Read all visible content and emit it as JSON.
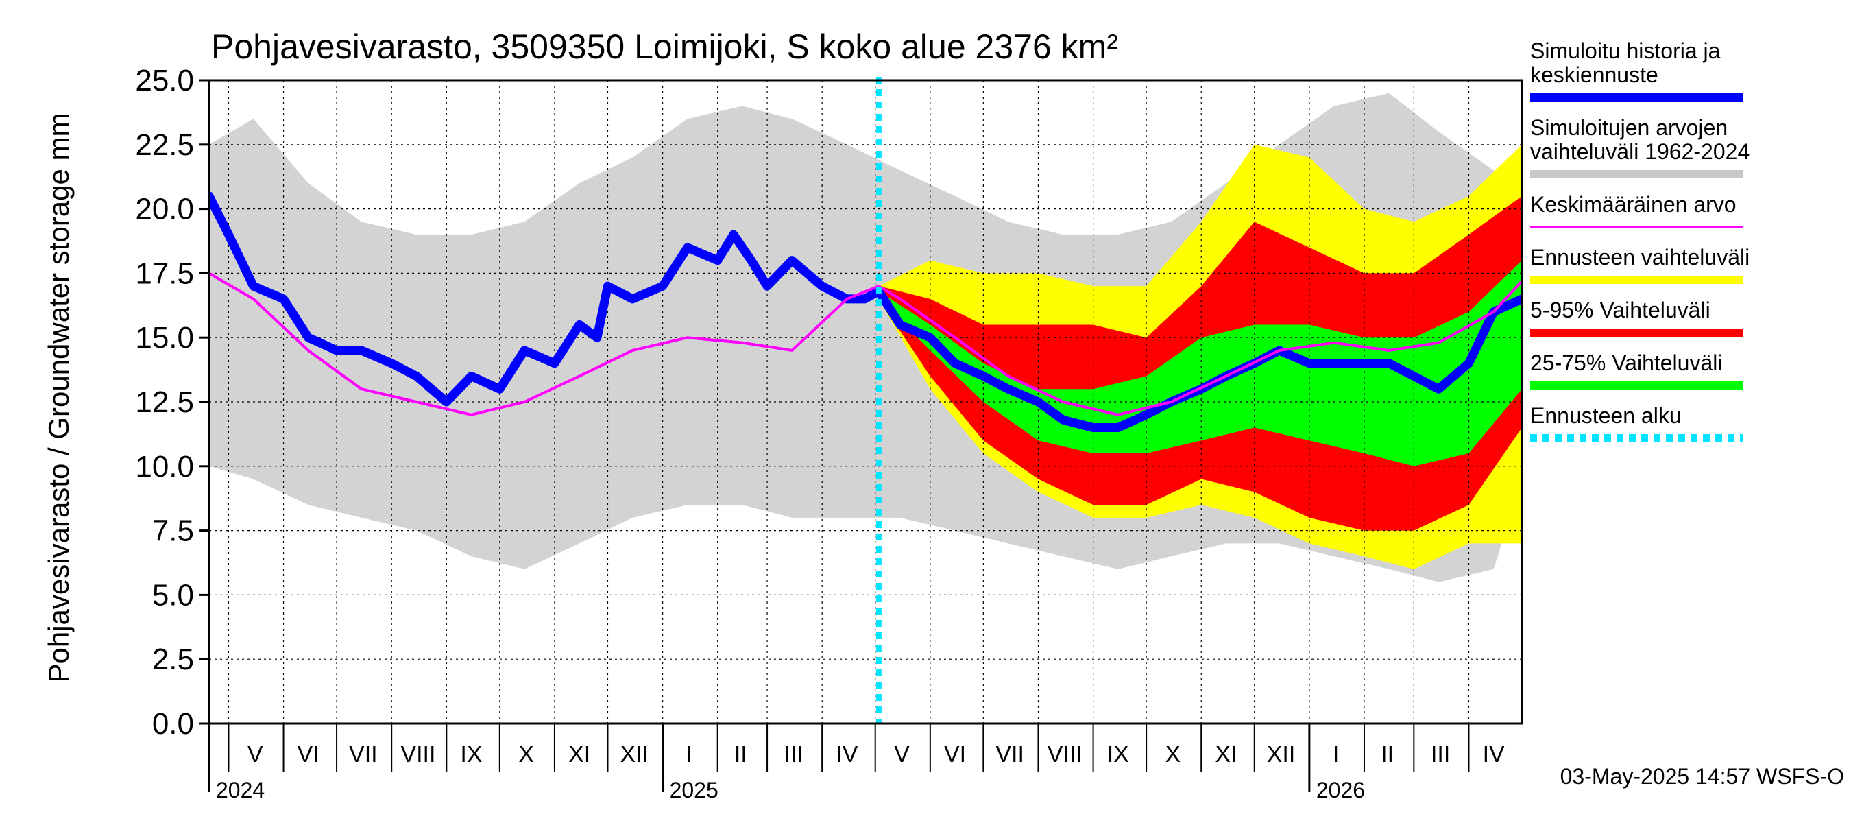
{
  "chart_data": {
    "type": "area",
    "title": "Pohjavesivarasto, 3509350 Loimijoki, S koko alue 2376 km²",
    "ylabel": "Pohjavesivarasto / Groundwater storage   mm",
    "ylim": [
      0,
      25
    ],
    "y_ticks": [
      "0.0",
      "2.5",
      "5.0",
      "7.5",
      "10.0",
      "12.5",
      "15.0",
      "17.5",
      "20.0",
      "22.5",
      "25.0"
    ],
    "x_range": [
      "2024-04-20",
      "2026-05-01"
    ],
    "forecast_start": "2025-05-03",
    "month_labels": [
      {
        "label": "V",
        "date": "2024-05-16"
      },
      {
        "label": "VI",
        "date": "2024-06-15"
      },
      {
        "label": "VII",
        "date": "2024-07-16"
      },
      {
        "label": "VIII",
        "date": "2024-08-16"
      },
      {
        "label": "IX",
        "date": "2024-09-15"
      },
      {
        "label": "X",
        "date": "2024-10-16"
      },
      {
        "label": "XI",
        "date": "2024-11-15"
      },
      {
        "label": "XII",
        "date": "2024-12-16"
      },
      {
        "label": "I",
        "date": "2025-01-16"
      },
      {
        "label": "II",
        "date": "2025-02-14"
      },
      {
        "label": "III",
        "date": "2025-03-16"
      },
      {
        "label": "IV",
        "date": "2025-04-15"
      },
      {
        "label": "V",
        "date": "2025-05-16"
      },
      {
        "label": "VI",
        "date": "2025-06-15"
      },
      {
        "label": "VII",
        "date": "2025-07-16"
      },
      {
        "label": "VIII",
        "date": "2025-08-16"
      },
      {
        "label": "IX",
        "date": "2025-09-15"
      },
      {
        "label": "X",
        "date": "2025-10-16"
      },
      {
        "label": "XI",
        "date": "2025-11-15"
      },
      {
        "label": "XII",
        "date": "2025-12-16"
      },
      {
        "label": "I",
        "date": "2026-01-16"
      },
      {
        "label": "II",
        "date": "2026-02-14"
      },
      {
        "label": "III",
        "date": "2026-03-16"
      },
      {
        "label": "IV",
        "date": "2026-04-15"
      }
    ],
    "year_labels": [
      {
        "label": "2024",
        "date": "2024-04-20"
      },
      {
        "label": "2025",
        "date": "2025-01-01"
      },
      {
        "label": "2026",
        "date": "2026-01-01"
      }
    ],
    "legend": [
      {
        "label": "Simuloitu historia ja keskiennuste",
        "color": "#0000ff",
        "style": "thick"
      },
      {
        "label": "Simuloitujen arvojen vaihteluväli 1962-2024",
        "color": "#c8c8c8",
        "style": "thick"
      },
      {
        "label": "Keskimääräinen arvo",
        "color": "#ff00ff",
        "style": "thin"
      },
      {
        "label": "Ennusteen vaihteluväli",
        "color": "#ffff00",
        "style": "thick"
      },
      {
        "label": "5-95% Vaihteluväli",
        "color": "#ff0000",
        "style": "thick"
      },
      {
        "label": "25-75% Vaihteluväli",
        "color": "#00ff00",
        "style": "thick"
      },
      {
        "label": "Ennusteen alku",
        "color": "#00e5ff",
        "style": "dotted"
      }
    ],
    "legend_position": "right",
    "grid": true,
    "series": [
      {
        "name": "Simuloitujen arvojen vaihteluväli 1962-2024",
        "kind": "band",
        "color": "#d3d3d3",
        "x": [
          "2024-04-20",
          "2024-05-15",
          "2024-06-15",
          "2024-07-15",
          "2024-08-15",
          "2024-09-15",
          "2024-10-15",
          "2024-11-15",
          "2024-12-15",
          "2025-01-15",
          "2025-02-15",
          "2025-03-15",
          "2025-04-15",
          "2025-05-15",
          "2025-06-15",
          "2025-07-15",
          "2025-08-15",
          "2025-09-15",
          "2025-10-15",
          "2025-11-15",
          "2025-12-15",
          "2026-01-15",
          "2026-02-15",
          "2026-03-15",
          "2026-04-15",
          "2026-05-01"
        ],
        "upper": [
          22.5,
          23.5,
          21.0,
          19.5,
          19.0,
          19.0,
          19.5,
          21.0,
          22.0,
          23.5,
          24.0,
          23.5,
          22.5,
          21.5,
          20.5,
          19.5,
          19.0,
          19.0,
          19.5,
          21.0,
          22.5,
          24.0,
          24.5,
          23.0,
          21.5,
          21.0
        ],
        "lower": [
          10.0,
          9.5,
          8.5,
          8.0,
          7.5,
          6.5,
          6.0,
          7.0,
          8.0,
          8.5,
          8.5,
          8.0,
          8.0,
          8.0,
          7.5,
          7.0,
          6.5,
          6.0,
          6.5,
          7.0,
          7.0,
          6.5,
          6.0,
          5.5,
          6.0,
          9.5
        ]
      },
      {
        "name": "Ennusteen vaihteluväli",
        "kind": "band",
        "color": "#ffff00",
        "x": [
          "2025-05-03",
          "2025-06-01",
          "2025-07-01",
          "2025-08-01",
          "2025-09-01",
          "2025-10-01",
          "2025-11-01",
          "2025-12-01",
          "2026-01-01",
          "2026-02-01",
          "2026-03-01",
          "2026-04-01",
          "2026-05-01"
        ],
        "upper": [
          17.0,
          18.0,
          17.5,
          17.5,
          17.0,
          17.0,
          19.5,
          22.5,
          22.0,
          20.0,
          19.5,
          20.5,
          22.5
        ],
        "lower": [
          16.5,
          13.0,
          10.5,
          9.0,
          8.0,
          8.0,
          8.5,
          8.0,
          7.0,
          6.5,
          6.0,
          7.0,
          7.0
        ]
      },
      {
        "name": "5-95% Vaihteluväli",
        "kind": "band",
        "color": "#ff0000",
        "x": [
          "2025-05-03",
          "2025-06-01",
          "2025-07-01",
          "2025-08-01",
          "2025-09-01",
          "2025-10-01",
          "2025-11-01",
          "2025-12-01",
          "2026-01-01",
          "2026-02-01",
          "2026-03-01",
          "2026-04-01",
          "2026-05-01"
        ],
        "upper": [
          17.0,
          16.5,
          15.5,
          15.5,
          15.5,
          15.0,
          17.0,
          19.5,
          18.5,
          17.5,
          17.5,
          19.0,
          20.5
        ],
        "lower": [
          16.5,
          13.5,
          11.0,
          9.5,
          8.5,
          8.5,
          9.5,
          9.0,
          8.0,
          7.5,
          7.5,
          8.5,
          11.5
        ]
      },
      {
        "name": "25-75% Vaihteluväli",
        "kind": "band",
        "color": "#00ff00",
        "x": [
          "2025-05-03",
          "2025-06-01",
          "2025-07-01",
          "2025-08-01",
          "2025-09-01",
          "2025-10-01",
          "2025-11-01",
          "2025-12-01",
          "2026-01-01",
          "2026-02-01",
          "2026-03-01",
          "2026-04-01",
          "2026-05-01"
        ],
        "upper": [
          16.8,
          15.5,
          14.0,
          13.0,
          13.0,
          13.5,
          15.0,
          15.5,
          15.5,
          15.0,
          15.0,
          16.0,
          18.0
        ],
        "lower": [
          16.5,
          14.5,
          12.5,
          11.0,
          10.5,
          10.5,
          11.0,
          11.5,
          11.0,
          10.5,
          10.0,
          10.5,
          13.0
        ]
      },
      {
        "name": "Simuloitu historia ja keskiennuste",
        "kind": "line",
        "color": "#0000ff",
        "x": [
          "2024-04-20",
          "2024-05-01",
          "2024-05-15",
          "2024-06-01",
          "2024-06-15",
          "2024-07-01",
          "2024-07-15",
          "2024-08-01",
          "2024-08-15",
          "2024-09-01",
          "2024-09-15",
          "2024-10-01",
          "2024-10-15",
          "2024-11-01",
          "2024-11-15",
          "2024-11-25",
          "2024-12-01",
          "2024-12-15",
          "2025-01-01",
          "2025-01-15",
          "2025-02-01",
          "2025-02-10",
          "2025-02-20",
          "2025-03-01",
          "2025-03-15",
          "2025-04-01",
          "2025-04-15",
          "2025-04-25",
          "2025-05-03",
          "2025-05-15",
          "2025-06-01",
          "2025-06-15",
          "2025-07-01",
          "2025-07-15",
          "2025-08-01",
          "2025-08-15",
          "2025-09-01",
          "2025-09-15",
          "2025-10-01",
          "2025-10-15",
          "2025-11-01",
          "2025-11-15",
          "2025-12-01",
          "2025-12-15",
          "2026-01-01",
          "2026-01-15",
          "2026-02-01",
          "2026-02-15",
          "2026-03-01",
          "2026-03-15",
          "2026-04-01",
          "2026-04-15",
          "2026-05-01"
        ],
        "y": [
          20.5,
          19.0,
          17.0,
          16.5,
          15.0,
          14.5,
          14.5,
          14.0,
          13.5,
          12.5,
          13.5,
          13.0,
          14.5,
          14.0,
          15.5,
          15.0,
          17.0,
          16.5,
          17.0,
          18.5,
          18.0,
          19.0,
          18.0,
          17.0,
          18.0,
          17.0,
          16.5,
          16.5,
          16.8,
          15.5,
          15.0,
          14.0,
          13.5,
          13.0,
          12.5,
          11.8,
          11.5,
          11.5,
          12.0,
          12.5,
          13.0,
          13.5,
          14.0,
          14.5,
          14.0,
          14.0,
          14.0,
          14.0,
          13.5,
          13.0,
          14.0,
          16.0,
          16.5
        ]
      },
      {
        "name": "Keskimääräinen arvo",
        "kind": "line",
        "color": "#ff00ff",
        "x": [
          "2024-04-20",
          "2024-05-15",
          "2024-06-15",
          "2024-07-15",
          "2024-08-15",
          "2024-09-15",
          "2024-10-15",
          "2024-11-15",
          "2024-12-15",
          "2025-01-15",
          "2025-02-15",
          "2025-03-15",
          "2025-04-15",
          "2025-05-03",
          "2025-05-15",
          "2025-06-15",
          "2025-07-15",
          "2025-08-15",
          "2025-09-15",
          "2025-10-15",
          "2025-11-15",
          "2025-12-15",
          "2026-01-15",
          "2026-02-15",
          "2026-03-15",
          "2026-04-15",
          "2026-05-01"
        ],
        "y": [
          17.5,
          16.5,
          14.5,
          13.0,
          12.5,
          12.0,
          12.5,
          13.5,
          14.5,
          15.0,
          14.8,
          14.5,
          16.5,
          17.0,
          16.5,
          15.0,
          13.5,
          12.5,
          12.0,
          12.5,
          13.5,
          14.5,
          14.8,
          14.5,
          14.8,
          16.0,
          17.2
        ]
      }
    ],
    "footer": "03-May-2025 14:57 WSFS-O"
  }
}
